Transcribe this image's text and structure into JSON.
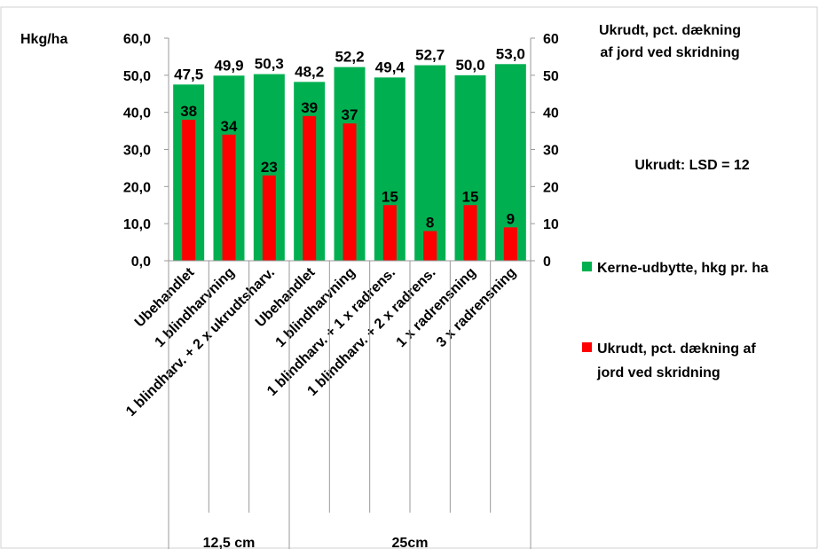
{
  "chart_data": {
    "type": "bar",
    "title": "",
    "categories": [
      "Ubehandlet",
      "1 blindharvning",
      "1 blindharv. + 2 x ukrudtsharv.",
      "Ubehandlet",
      "1 blindharvning",
      "1 blindharv. + 1 x radrens.",
      "1 blindharv. + 2 x radrens.",
      "1 x radrensning",
      "3 x radrensning"
    ],
    "groups": [
      {
        "label": "12,5 cm",
        "count": 3
      },
      {
        "label": "25cm",
        "count": 6
      }
    ],
    "series": [
      {
        "name": "Kerne-udbytte, hkg pr. ha",
        "axis": "left",
        "color": "#00b050",
        "values": [
          47.5,
          49.9,
          50.3,
          48.2,
          52.2,
          49.4,
          52.7,
          50.0,
          53.0
        ],
        "labels": [
          "47,5",
          "49,9",
          "50,3",
          "48,2",
          "52,2",
          "49,4",
          "52,7",
          "50,0",
          "53,0"
        ]
      },
      {
        "name": "Ukrudt, pct. dækning af jord ved skridning",
        "axis": "right",
        "color": "#ff0000",
        "values": [
          38,
          34,
          23,
          39,
          37,
          15,
          8,
          15,
          9
        ],
        "labels": [
          "38",
          "34",
          "23",
          "39",
          "37",
          "15",
          "8",
          "15",
          "9"
        ]
      }
    ],
    "ylabel": "Hkg/ha",
    "ylim": [
      0,
      60
    ],
    "yticks": [
      "0,0",
      "10,0",
      "20,0",
      "30,0",
      "40,0",
      "50,0",
      "60,0"
    ],
    "y2label_lines": [
      "Ukrudt, pct. dækning",
      "af jord ved skridning"
    ],
    "y2lim": [
      0,
      60
    ],
    "y2ticks": [
      "0",
      "10",
      "20",
      "30",
      "40",
      "50",
      "60"
    ],
    "annotation": "Ukrudt: LSD = 12",
    "legend": [
      {
        "text_lines": [
          "Kerne-udbytte, hkg pr. ha"
        ],
        "color": "#00b050"
      },
      {
        "text_lines": [
          "Ukrudt, pct. dækning af",
          "jord ved skridning"
        ],
        "color": "#ff0000"
      }
    ],
    "legend_position": "right",
    "grid": false
  }
}
